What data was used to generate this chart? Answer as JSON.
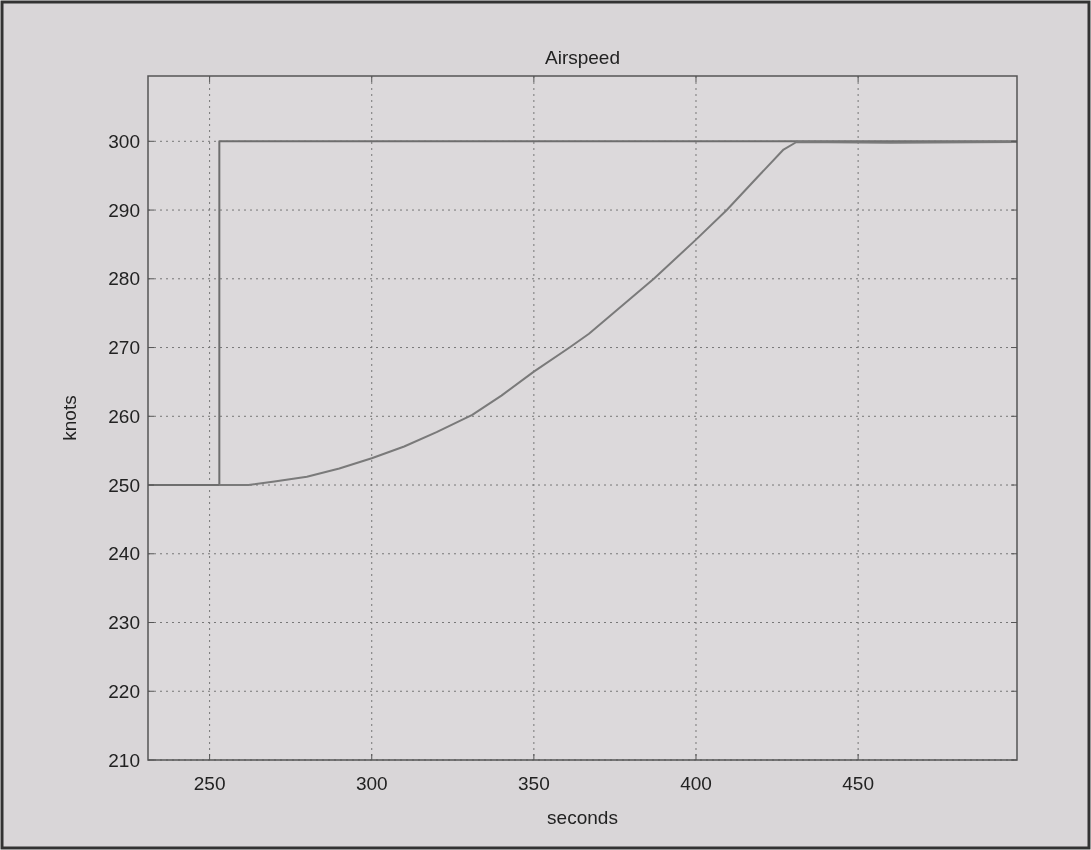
{
  "chart_data": {
    "type": "line",
    "title": "Airspeed",
    "xlabel": "seconds",
    "ylabel": "knots",
    "xlim": [
      231,
      499
    ],
    "ylim": [
      210,
      309.5
    ],
    "xticks": [
      250,
      300,
      350,
      400,
      450
    ],
    "yticks": [
      210,
      220,
      230,
      240,
      250,
      260,
      270,
      280,
      290,
      300
    ],
    "grid": true,
    "series": [
      {
        "color": "#6e6e6e",
        "x": [
          231,
          253,
          253,
          499
        ],
        "values": [
          250,
          250,
          300,
          300
        ]
      },
      {
        "color": "#7a7a7a",
        "x": [
          253,
          262,
          270,
          280,
          290,
          300,
          310,
          320,
          331,
          340,
          350,
          361,
          367,
          387,
          400,
          409.5,
          419,
          427,
          431,
          460,
          499
        ],
        "values": [
          250,
          250,
          250.5,
          251.2,
          252.4,
          253.9,
          255.6,
          257.7,
          260.2,
          263,
          266.5,
          270,
          272,
          280,
          285.7,
          290,
          294.8,
          298.8,
          299.9,
          299.8,
          299.9
        ]
      }
    ]
  }
}
